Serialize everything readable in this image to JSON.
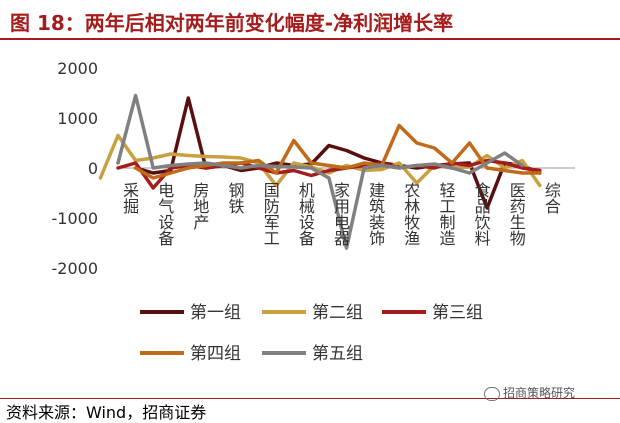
{
  "title": "图 18：两年后相对两年前变化幅度-净利润增长率",
  "source": "资料来源：Wind，招商证券",
  "watermark": "招商策略研究",
  "chart_data": {
    "type": "line",
    "title": "",
    "xlabel": "",
    "ylabel": "",
    "ylim": [
      -2000,
      2000
    ],
    "yticks": [
      2000,
      1000,
      0,
      -1000,
      -2000
    ],
    "categories": [
      "采掘",
      "电气设备",
      "房地产",
      "钢铁",
      "国防军工",
      "机械设备",
      "家用电器",
      "建筑装饰",
      "农林牧渔",
      "轻工制造",
      "食品饮料",
      "医药生物",
      "综合"
    ],
    "series": [
      {
        "name": "第一组",
        "color": "#5a0f0f",
        "x": [
          0,
          0.5,
          1,
          1.5,
          2,
          2.5,
          3,
          3.5,
          4,
          4.5,
          5,
          5.5,
          6,
          6.5,
          7,
          7.5,
          8,
          8.5,
          9,
          9.5,
          10,
          10.5,
          11,
          11.5
        ],
        "y": [
          0,
          -100,
          -50,
          1400,
          0,
          50,
          -50,
          0,
          100,
          50,
          80,
          450,
          350,
          200,
          100,
          50,
          0,
          50,
          80,
          100,
          -800,
          100,
          50,
          -100
        ]
      },
      {
        "name": "第二组",
        "color": "#c9a040",
        "x": [
          -1,
          -0.5,
          0,
          0.5,
          1,
          1.5,
          2,
          2.5,
          3,
          3.5,
          4,
          4.5,
          5,
          5.5,
          6,
          6.5,
          7,
          7.5,
          8,
          8.5,
          9,
          9.5,
          10,
          10.5,
          11,
          11.5
        ],
        "y": [
          -200,
          650,
          150,
          200,
          280,
          250,
          230,
          220,
          200,
          100,
          -350,
          100,
          20,
          -100,
          50,
          -50,
          -30,
          100,
          -300,
          50,
          0,
          20,
          250,
          0,
          150,
          -350
        ]
      },
      {
        "name": "第三组",
        "color": "#a51c1c",
        "x": [
          -0.5,
          0,
          0.5,
          1,
          1.5,
          2,
          2.5,
          3,
          3.5,
          4,
          4.5,
          5,
          5.5,
          6,
          6.5,
          7,
          7.5,
          8,
          8.5,
          9,
          9.5,
          10,
          10.5,
          11,
          11.5
        ],
        "y": [
          0,
          100,
          -400,
          0,
          50,
          0,
          50,
          100,
          0,
          -100,
          -50,
          -150,
          -50,
          0,
          50,
          100,
          0,
          50,
          0,
          100,
          50,
          150,
          100,
          0,
          -50
        ]
      },
      {
        "name": "第四组",
        "color": "#c06a1a",
        "x": [
          0,
          0.5,
          1,
          1.5,
          2,
          2.5,
          3,
          3.5,
          4,
          4.5,
          5,
          5.5,
          6,
          6.5,
          7,
          7.5,
          8,
          8.5,
          9,
          9.5,
          10,
          10.5,
          11,
          11.5
        ],
        "y": [
          0,
          -200,
          -100,
          0,
          50,
          100,
          100,
          150,
          -100,
          550,
          100,
          50,
          0,
          100,
          50,
          850,
          500,
          400,
          100,
          500,
          0,
          -50,
          -100,
          -100
        ]
      },
      {
        "name": "第五组",
        "color": "#808080",
        "x": [
          -0.5,
          0,
          0.5,
          1,
          1.5,
          2,
          2.5,
          3,
          3.5,
          4,
          4.5,
          5,
          5.5,
          6,
          6.5,
          7,
          7.5,
          8,
          8.5,
          9,
          9.5,
          10,
          10.5,
          11
        ],
        "y": [
          100,
          1450,
          0,
          50,
          80,
          100,
          50,
          0,
          50,
          30,
          20,
          0,
          -200,
          -1600,
          0,
          50,
          0,
          50,
          80,
          0,
          -100,
          100,
          300,
          50
        ]
      }
    ],
    "legend": "bottom",
    "grid": false
  }
}
